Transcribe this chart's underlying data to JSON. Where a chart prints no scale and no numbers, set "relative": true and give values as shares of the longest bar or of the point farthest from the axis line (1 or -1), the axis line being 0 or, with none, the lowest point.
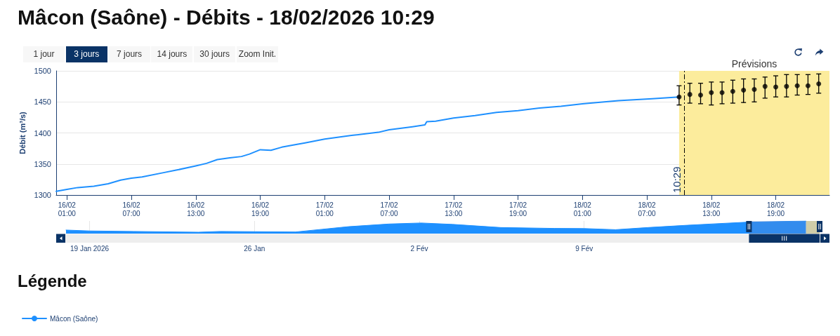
{
  "chart_data": [
    {
      "type": "line",
      "title": "Mâcon (Saône) - Débits - 18/02/2026 10:29",
      "ylabel": "Débit (m³/s)",
      "legend_title": "Légende",
      "annotations": [
        "1 jour",
        "3 jours",
        "7 jours",
        "14 jours",
        "30 jours",
        "Zoom Init."
      ],
      "xlim": [
        "2026-02-16T00:00",
        "2026-02-19T00:00"
      ],
      "xticks": [
        {
          "value": "2026-02-16T01:00",
          "label": "16/02\n01:00"
        },
        {
          "value": "2026-02-16T07:00",
          "label": "16/02\n07:00"
        },
        {
          "value": "2026-02-16T13:00",
          "label": "16/02\n13:00"
        },
        {
          "value": "2026-02-16T19:00",
          "label": "16/02\n19:00"
        },
        {
          "value": "2026-02-17T01:00",
          "label": "17/02\n01:00"
        },
        {
          "value": "2026-02-17T07:00",
          "label": "17/02\n07:00"
        },
        {
          "value": "2026-02-17T13:00",
          "label": "17/02\n13:00"
        },
        {
          "value": "2026-02-17T19:00",
          "label": "17/02\n19:00"
        },
        {
          "value": "2026-02-18T01:00",
          "label": "18/02\n01:00"
        },
        {
          "value": "2026-02-18T07:00",
          "label": "18/02\n07:00"
        },
        {
          "value": "2026-02-18T13:00",
          "label": "18/02\n13:00"
        },
        {
          "value": "2026-02-18T19:00",
          "label": "18/02\n19:00"
        }
      ],
      "ylim": [
        1300,
        1500
      ],
      "yticks": [
        1300,
        1350,
        1400,
        1450,
        1500
      ],
      "grid": "y",
      "legend": "bottom left",
      "series": [
        {
          "name": "Mâcon (Saône)",
          "color": "#1e90ff",
          "x": [
            "2026-02-16T00:00",
            "2026-02-16T01:00",
            "2026-02-16T02:00",
            "2026-02-16T03:30",
            "2026-02-16T04:50",
            "2026-02-16T06:00",
            "2026-02-16T07:00",
            "2026-02-16T08:00",
            "2026-02-16T10:00",
            "2026-02-16T11:10",
            "2026-02-16T13:00",
            "2026-02-16T14:00",
            "2026-02-16T15:00",
            "2026-02-16T16:10",
            "2026-02-16T17:15",
            "2026-02-16T18:00",
            "2026-02-16T19:00",
            "2026-02-16T20:00",
            "2026-02-16T21:00",
            "2026-02-16T22:15",
            "2026-02-16T23:10",
            "2026-02-17T01:00",
            "2026-02-17T03:30",
            "2026-02-17T06:00",
            "2026-02-17T07:00",
            "2026-02-17T09:10",
            "2026-02-17T10:20",
            "2026-02-17T10:30",
            "2026-02-17T11:20",
            "2026-02-17T13:00",
            "2026-02-17T15:00",
            "2026-02-17T17:00",
            "2026-02-17T19:00",
            "2026-02-17T21:00",
            "2026-02-17T23:00",
            "2026-02-18T01:00",
            "2026-02-18T04:20",
            "2026-02-18T07:30",
            "2026-02-18T10:00"
          ],
          "values": [
            1306,
            1309,
            1312,
            1314,
            1318,
            1324,
            1327,
            1329,
            1336,
            1340,
            1347,
            1351,
            1357,
            1360,
            1362,
            1366,
            1373,
            1372,
            1377,
            1381,
            1384,
            1390,
            1396,
            1401,
            1405,
            1410,
            1413,
            1418,
            1419,
            1424,
            1428,
            1433,
            1436,
            1440,
            1443,
            1447,
            1452,
            1455,
            1458
          ]
        },
        {
          "type": "scatter",
          "marker": "circle",
          "color": "#000000",
          "x": [
            "2026-02-18T10:00",
            "2026-02-18T11:00",
            "2026-02-18T12:00",
            "2026-02-18T13:00",
            "2026-02-18T14:00",
            "2026-02-18T15:00",
            "2026-02-18T16:00",
            "2026-02-18T17:00",
            "2026-02-18T18:00",
            "2026-02-18T19:00",
            "2026-02-18T20:00",
            "2026-02-18T21:00",
            "2026-02-18T22:00",
            "2026-02-18T23:00"
          ],
          "values": [
            1458,
            1462,
            1461,
            1465,
            1465,
            1467,
            1469,
            1470,
            1475,
            1474,
            1475,
            1476,
            1476,
            1479
          ],
          "errors": [
            [
              1445,
              1476
            ],
            [
              1448,
              1480
            ],
            [
              1447,
              1480
            ],
            [
              1445,
              1482
            ],
            [
              1447,
              1482
            ],
            [
              1448,
              1485
            ],
            [
              1449,
              1487
            ],
            [
              1450,
              1487
            ],
            [
              1456,
              1490
            ],
            [
              1458,
              1492
            ],
            [
              1458,
              1494
            ],
            [
              1461,
              1494
            ],
            [
              1462,
              1494
            ],
            [
              1464,
              1495
            ]
          ]
        }
      ],
      "bands": [
        {
          "axis": "x",
          "from": "2026-02-18T10:00",
          "to": "2026-02-19T00:00",
          "label": "Prévisions",
          "color": "#fcec9c"
        }
      ],
      "ref_lines": [
        {
          "axis": "x",
          "value": "2026-02-18T10:29",
          "label": "10:29",
          "color": "#000000",
          "line_style": "dashed"
        }
      ]
    },
    {
      "type": "area",
      "relative": true,
      "color": "#1e90ff",
      "x": [
        "2026-01-18T00:00",
        "2026-01-19T00:00",
        "2026-01-20T21:00",
        "2026-01-23T15:00",
        "2026-01-24T13:00",
        "2026-01-26T01:00",
        "2026-01-27T18:00",
        "2026-01-28T21:00",
        "2026-01-30T00:00",
        "2026-01-31T17:00",
        "2026-02-02T02:00",
        "2026-02-03T10:00",
        "2026-02-05T11:00",
        "2026-02-07T18:00",
        "2026-02-09T00:00",
        "2026-02-10T08:00",
        "2026-02-11T17:00",
        "2026-02-13T09:00",
        "2026-02-14T12:00",
        "2026-02-15T21:00",
        "2026-02-18T10:00"
      ],
      "values": [
        0.28,
        0.21,
        0.17,
        0.11,
        0.17,
        0.15,
        0.13,
        0.34,
        0.55,
        0.76,
        0.84,
        0.73,
        0.48,
        0.41,
        0.4,
        0.31,
        0.48,
        0.66,
        0.77,
        0.9,
        1
      ],
      "xlim": [
        "2026-01-18",
        "2026-02-19"
      ],
      "xticks": [
        {
          "value": "2026-01-19",
          "label": "19 Jan 2026"
        },
        {
          "value": "2026-01-26",
          "label": "26 Jan"
        },
        {
          "value": "2026-02-02",
          "label": "2 Fév"
        },
        {
          "value": "2026-02-09",
          "label": "9 Fév"
        }
      ],
      "grid": "x",
      "tick_labels": "x",
      "bands": [
        {
          "axis": "x",
          "from": "2026-02-18T10:00",
          "to": "2026-02-19T00:00",
          "color": "#fcec9c"
        },
        {
          "axis": "x",
          "from": "2026-02-16T00:00",
          "to": "2026-02-19T00:00",
          "color": "#6685c2"
        }
      ]
    }
  ]
}
